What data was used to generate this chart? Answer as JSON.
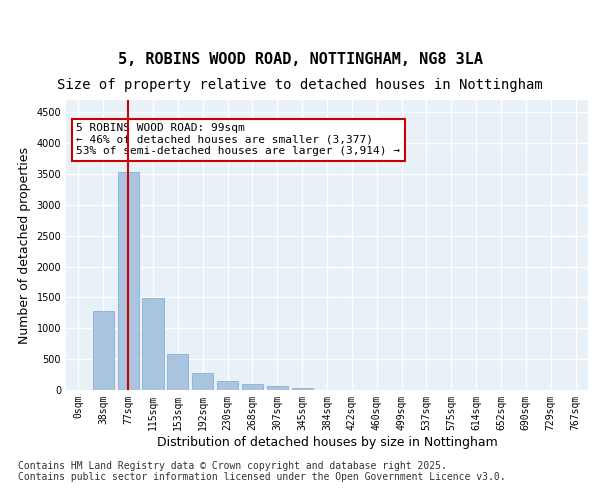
{
  "title": "5, ROBINS WOOD ROAD, NOTTINGHAM, NG8 3LA",
  "subtitle": "Size of property relative to detached houses in Nottingham",
  "xlabel": "Distribution of detached houses by size in Nottingham",
  "ylabel": "Number of detached properties",
  "categories": [
    "0sqm",
    "38sqm",
    "77sqm",
    "115sqm",
    "153sqm",
    "192sqm",
    "230sqm",
    "268sqm",
    "307sqm",
    "345sqm",
    "384sqm",
    "422sqm",
    "460sqm",
    "499sqm",
    "537sqm",
    "575sqm",
    "614sqm",
    "652sqm",
    "690sqm",
    "729sqm",
    "767sqm"
  ],
  "values": [
    5,
    1280,
    3530,
    1490,
    590,
    270,
    145,
    90,
    70,
    40,
    5,
    2,
    1,
    0,
    0,
    0,
    0,
    0,
    0,
    0,
    0
  ],
  "bar_color": "#aac4e0",
  "bar_edgecolor": "#7aaad0",
  "vline_x": 2,
  "vline_color": "#cc0000",
  "annotation_text": "5 ROBINS WOOD ROAD: 99sqm\n← 46% of detached houses are smaller (3,377)\n53% of semi-detached houses are larger (3,914) →",
  "annotation_box_color": "#ffffff",
  "annotation_box_edgecolor": "#cc0000",
  "ylim": [
    0,
    4700
  ],
  "yticks": [
    0,
    500,
    1000,
    1500,
    2000,
    2500,
    3000,
    3500,
    4000,
    4500
  ],
  "background_color": "#e8f0f8",
  "grid_color": "#ffffff",
  "footer": "Contains HM Land Registry data © Crown copyright and database right 2025.\nContains public sector information licensed under the Open Government Licence v3.0.",
  "title_fontsize": 11,
  "subtitle_fontsize": 10,
  "xlabel_fontsize": 9,
  "ylabel_fontsize": 9,
  "tick_fontsize": 7,
  "annotation_fontsize": 8,
  "footer_fontsize": 7
}
